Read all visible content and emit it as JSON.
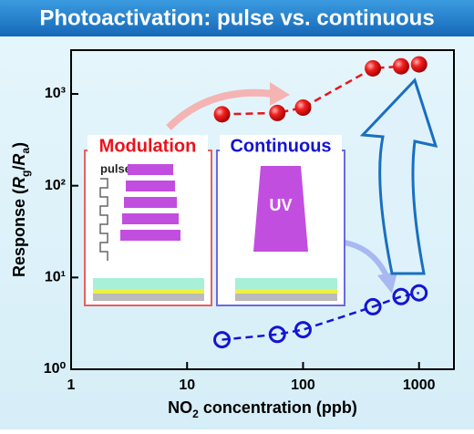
{
  "chart_data": {
    "type": "scatter",
    "title": "Photoactivation: pulse vs. continuous",
    "x_label_parts": [
      "NO",
      "2",
      " concentration (ppb)"
    ],
    "y_label_parts": [
      "Response (",
      "R",
      "g",
      "/",
      "R",
      "a",
      ")"
    ],
    "x_log": true,
    "y_log": true,
    "xlim": [
      1,
      2000
    ],
    "ylim": [
      1,
      3000
    ],
    "xticks": [
      1,
      10,
      100,
      1000
    ],
    "yticks": [
      {
        "value": 1,
        "label": "10⁰"
      },
      {
        "value": 10,
        "label": "10¹"
      },
      {
        "value": 100,
        "label": "10²"
      },
      {
        "value": 1000,
        "label": "10³"
      }
    ],
    "series": [
      {
        "name": "Modulation",
        "color": "#e8141c",
        "marker": "filled",
        "line_style": "dashed",
        "x": [
          20,
          60,
          100,
          400,
          700,
          1000
        ],
        "values": [
          600,
          620,
          710,
          1900,
          2000,
          2100
        ]
      },
      {
        "name": "Continuous",
        "color": "#1414d2",
        "marker": "hollow",
        "line_style": "dashed",
        "x": [
          20,
          60,
          100,
          400,
          700,
          1000
        ],
        "values": [
          2.1,
          2.4,
          2.7,
          4.8,
          6.2,
          6.8
        ]
      }
    ],
    "annotations": [
      "pulse",
      "UV"
    ]
  }
}
